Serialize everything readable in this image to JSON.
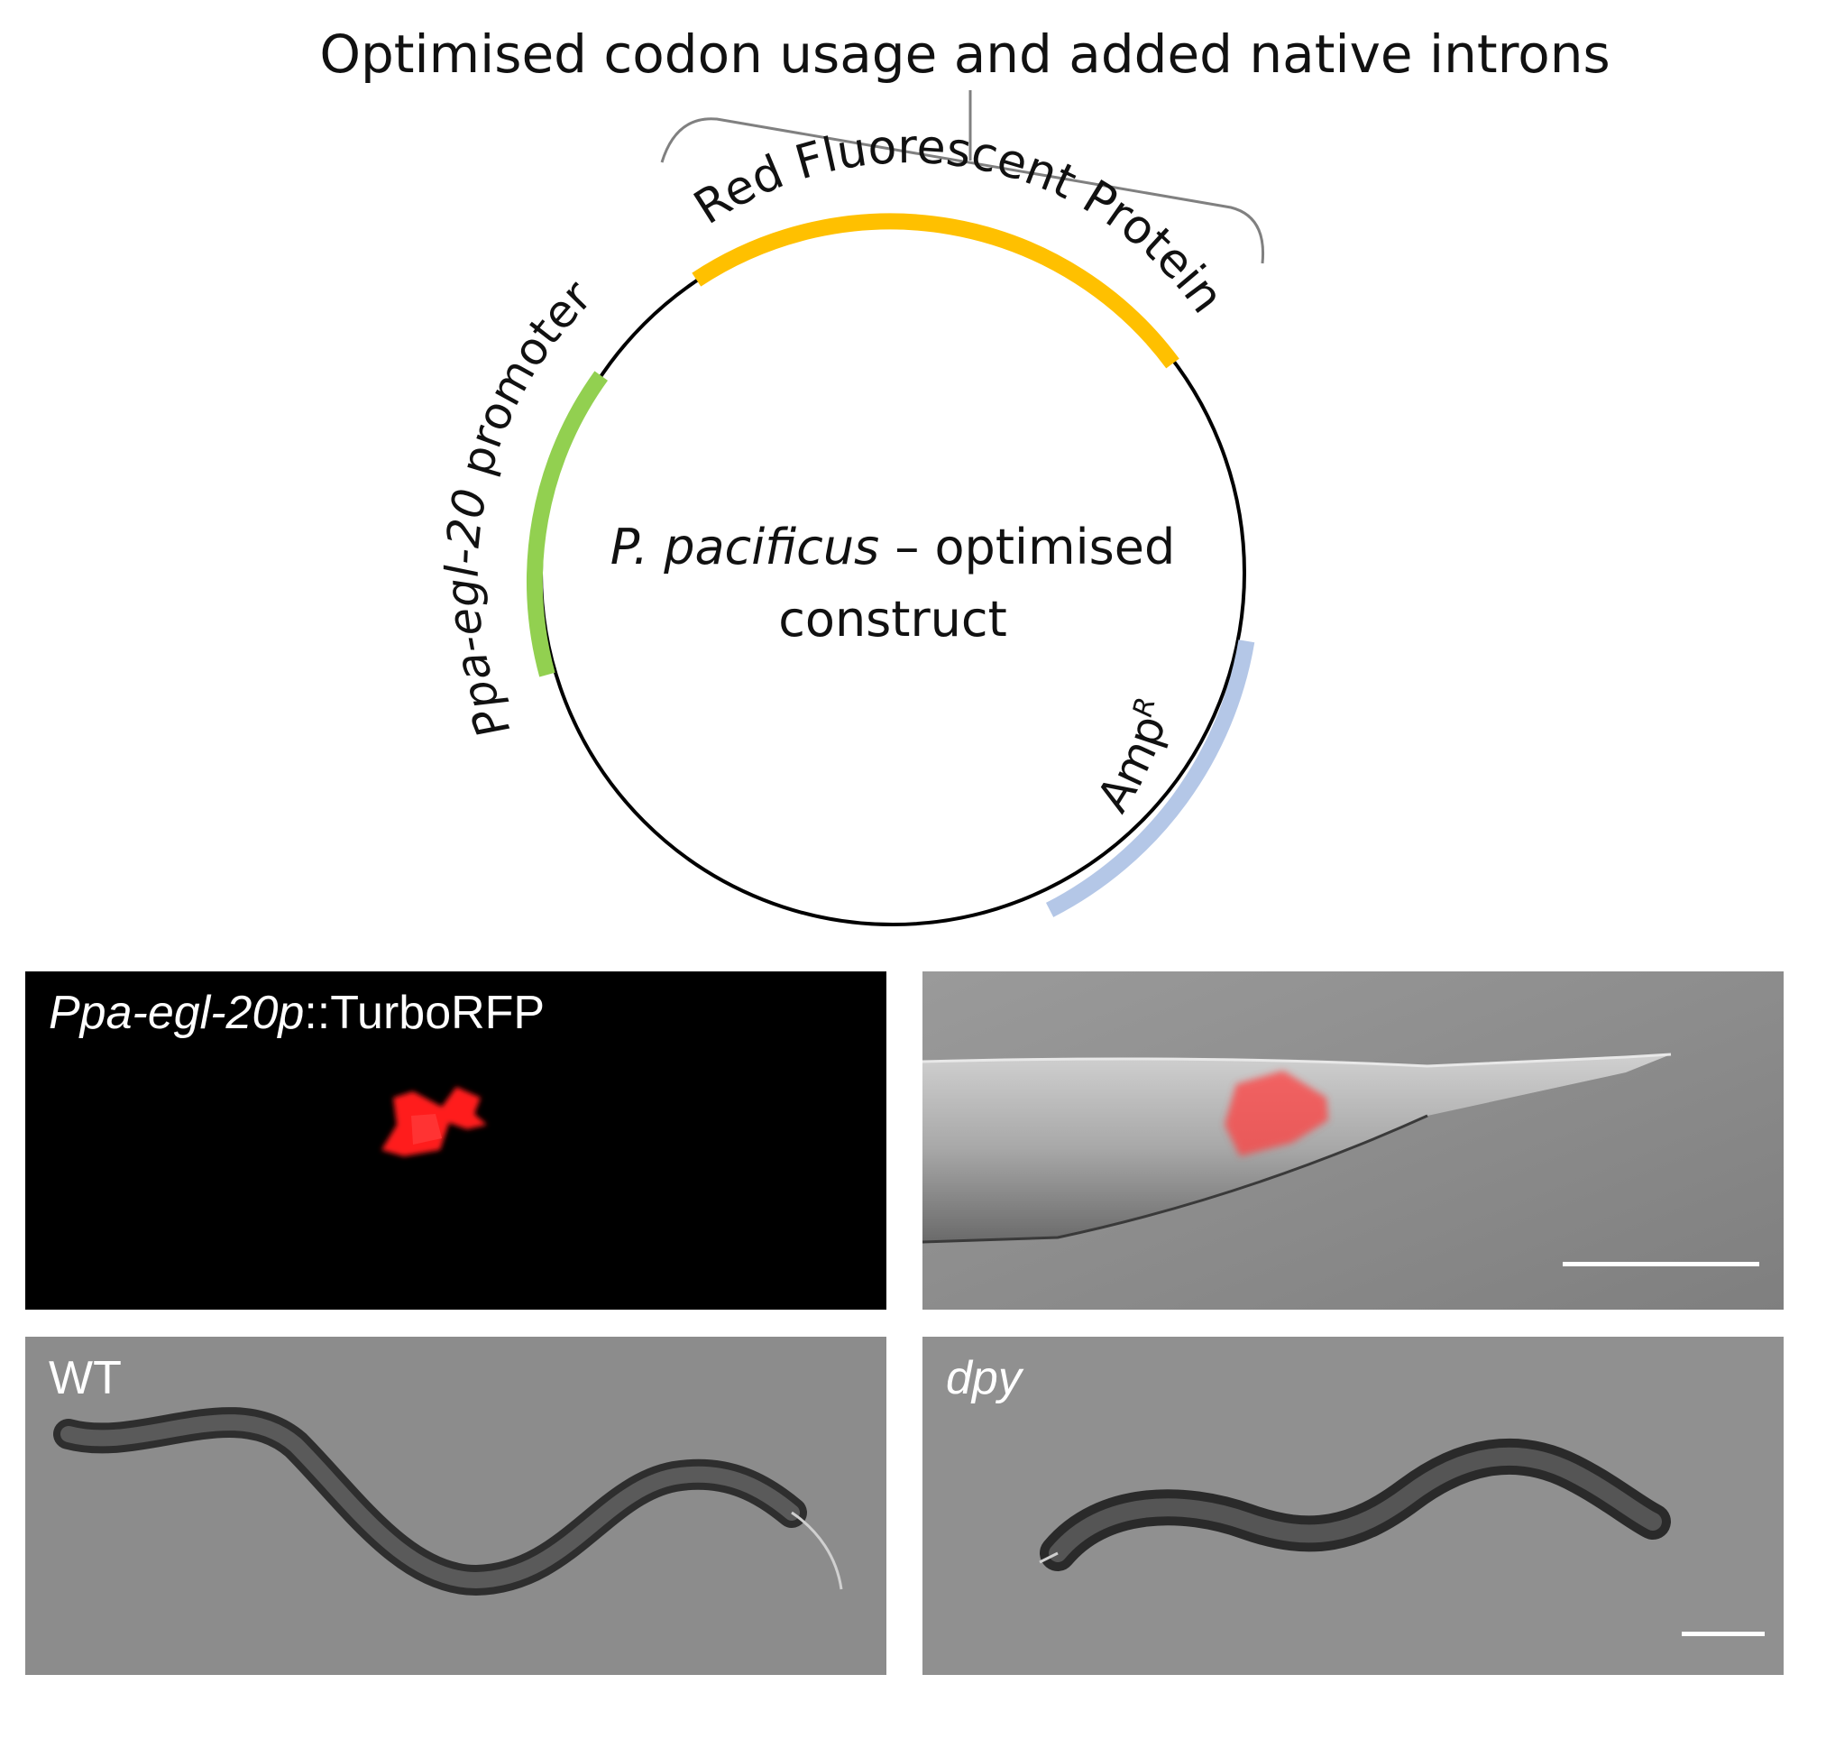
{
  "header": {
    "title": "Optimised codon usage and added native introns"
  },
  "plasmid": {
    "center_label_italic": "P. pacificus",
    "center_label_rest": " – optimised",
    "center_label_line2": "construct",
    "features": {
      "rfp": {
        "label": "Red Fluorescent Protein",
        "color": "#ffc000"
      },
      "promoter": {
        "label_italic": "Ppa-egl-20",
        "label_rest": " promoter",
        "color": "#92d050"
      },
      "ampr": {
        "label_main": "Amp",
        "label_sup": "R",
        "color": "#b4c7e7"
      }
    },
    "backbone_color": "#000000",
    "bracket_color": "#808080"
  },
  "panels": {
    "fluorescence": {
      "label_italic": "Ppa-egl-20p",
      "label_rest": "::TurboRFP",
      "signal_color": "#ff1a1a"
    },
    "overlay": {
      "signal_color": "#ff4040"
    },
    "wt": {
      "label": "WT"
    },
    "dpy": {
      "label": "dpy"
    }
  }
}
